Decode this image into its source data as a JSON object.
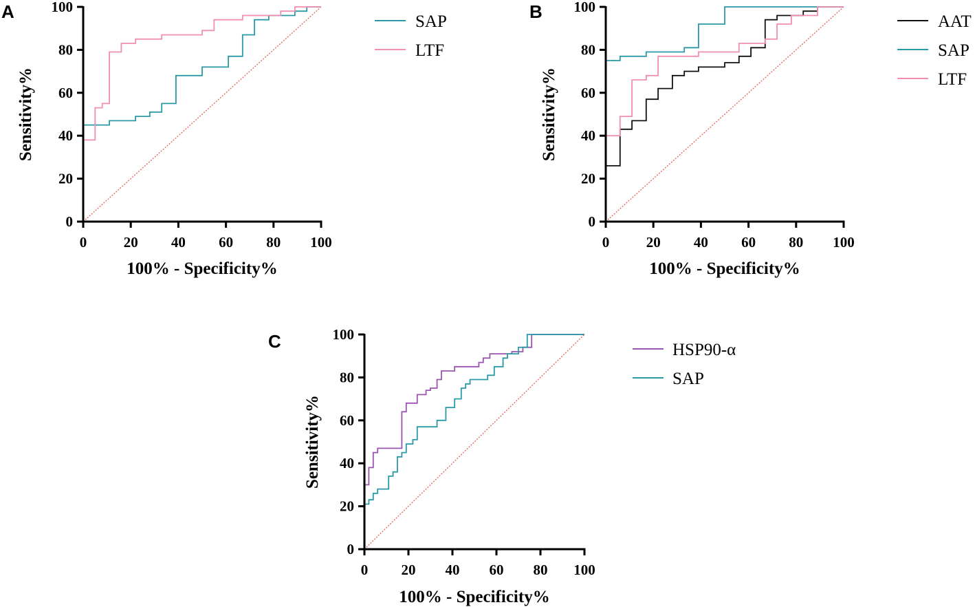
{
  "chart_data": [
    {
      "type": "line",
      "panel_label": "A",
      "xlabel": "100% - Specificity%",
      "ylabel": "Sensitivity%",
      "xlim": [
        0,
        100
      ],
      "ylim": [
        0,
        100
      ],
      "xticks": [
        "0",
        "20",
        "40",
        "60",
        "80",
        "100"
      ],
      "yticks": [
        "0",
        "20",
        "40",
        "60",
        "80",
        "100"
      ],
      "reference_line": true,
      "legend_position": "right",
      "series": [
        {
          "name": "SAP",
          "color": "#2a9aa6",
          "x": [
            0,
            0,
            11,
            11,
            22,
            22,
            28,
            28,
            33,
            33,
            39,
            39,
            50,
            50,
            61,
            61,
            67,
            67,
            72,
            72,
            78,
            78,
            89,
            89,
            94,
            94,
            100
          ],
          "y": [
            0,
            45,
            45,
            47,
            47,
            49,
            49,
            51,
            51,
            55,
            55,
            68,
            68,
            72,
            72,
            77,
            77,
            87,
            87,
            94,
            94,
            96,
            96,
            98,
            98,
            100,
            100
          ]
        },
        {
          "name": "LTF",
          "color": "#f08fb0",
          "x": [
            0,
            0,
            5,
            5,
            8,
            8,
            11,
            11,
            16,
            16,
            22,
            22,
            33,
            33,
            50,
            50,
            55,
            55,
            67,
            67,
            83,
            83,
            89,
            89,
            100
          ],
          "y": [
            0,
            38,
            38,
            53,
            53,
            55,
            55,
            79,
            79,
            83,
            83,
            85,
            85,
            87,
            87,
            89,
            89,
            94,
            94,
            96,
            96,
            98,
            98,
            100,
            100
          ]
        }
      ]
    },
    {
      "type": "line",
      "panel_label": "B",
      "xlabel": "100% - Specificity%",
      "ylabel": "Sensitivity%",
      "xlim": [
        0,
        100
      ],
      "ylim": [
        0,
        100
      ],
      "xticks": [
        "0",
        "20",
        "40",
        "60",
        "80",
        "100"
      ],
      "yticks": [
        "0",
        "20",
        "40",
        "60",
        "80",
        "100"
      ],
      "reference_line": true,
      "legend_position": "right",
      "series": [
        {
          "name": "AAT",
          "color": "#111111",
          "x": [
            0,
            0,
            6,
            6,
            11,
            11,
            17,
            17,
            22,
            22,
            28,
            28,
            33,
            33,
            39,
            39,
            50,
            50,
            56,
            56,
            61,
            61,
            67,
            67,
            72,
            72,
            78,
            78,
            83,
            83,
            89,
            89,
            100
          ],
          "y": [
            0,
            26,
            26,
            43,
            43,
            47,
            47,
            57,
            57,
            62,
            62,
            68,
            68,
            70,
            70,
            72,
            72,
            74,
            74,
            77,
            77,
            81,
            81,
            94,
            94,
            96,
            96,
            96,
            96,
            98,
            98,
            100,
            100
          ],
          "stroke_width": 1.6
        },
        {
          "name": "SAP",
          "color": "#2a9aa6",
          "x": [
            0,
            0,
            6,
            6,
            17,
            17,
            33,
            33,
            39,
            39,
            50,
            50,
            100
          ],
          "y": [
            0,
            75,
            75,
            77,
            77,
            79,
            79,
            81,
            81,
            92,
            92,
            100,
            100
          ]
        },
        {
          "name": "LTF",
          "color": "#f08fb0",
          "x": [
            0,
            0,
            6,
            6,
            11,
            11,
            17,
            17,
            22,
            22,
            39,
            39,
            56,
            56,
            67,
            67,
            72,
            72,
            78,
            78,
            89,
            89,
            100
          ],
          "y": [
            0,
            40,
            40,
            49,
            49,
            66,
            66,
            68,
            68,
            77,
            77,
            79,
            79,
            83,
            83,
            85,
            85,
            92,
            92,
            96,
            96,
            100,
            100
          ]
        }
      ]
    },
    {
      "type": "line",
      "panel_label": "C",
      "xlabel": "100% - Specificity%",
      "ylabel": "Sensitivity%",
      "xlim": [
        0,
        100
      ],
      "ylim": [
        0,
        100
      ],
      "xticks": [
        "0",
        "20",
        "40",
        "60",
        "80",
        "100"
      ],
      "yticks": [
        "0",
        "20",
        "40",
        "60",
        "80",
        "100"
      ],
      "reference_line": true,
      "legend_position": "right",
      "series": [
        {
          "name": "HSP90-α",
          "color": "#9a55b0",
          "x": [
            0,
            0,
            2,
            2,
            4,
            4,
            6,
            6,
            9,
            9,
            17,
            17,
            19,
            19,
            24,
            24,
            28,
            28,
            30,
            30,
            33,
            33,
            35,
            35,
            41,
            41,
            44,
            44,
            52,
            52,
            54,
            54,
            57,
            57,
            61,
            61,
            67,
            67,
            72,
            72,
            76,
            76,
            100
          ],
          "y": [
            0,
            30,
            30,
            38,
            38,
            45,
            45,
            47,
            47,
            47,
            47,
            64,
            64,
            68,
            68,
            72,
            72,
            74,
            74,
            75,
            75,
            79,
            79,
            83,
            83,
            85,
            85,
            85,
            85,
            87,
            87,
            89,
            89,
            91,
            91,
            91,
            91,
            92,
            92,
            94,
            94,
            100,
            100
          ]
        },
        {
          "name": "SAP",
          "color": "#2a9aa6",
          "x": [
            0,
            0,
            2,
            2,
            4,
            4,
            6,
            6,
            11,
            11,
            13,
            13,
            15,
            15,
            17,
            17,
            19,
            19,
            22,
            22,
            24,
            24,
            33,
            33,
            37,
            37,
            41,
            41,
            44,
            44,
            46,
            46,
            48,
            48,
            56,
            56,
            59,
            59,
            63,
            63,
            65,
            65,
            70,
            70,
            74,
            74,
            100
          ],
          "y": [
            0,
            21,
            21,
            23,
            23,
            26,
            26,
            28,
            28,
            34,
            34,
            36,
            36,
            43,
            43,
            45,
            45,
            49,
            49,
            51,
            51,
            57,
            57,
            60,
            60,
            66,
            66,
            70,
            70,
            75,
            75,
            77,
            77,
            79,
            79,
            81,
            81,
            85,
            85,
            89,
            89,
            91,
            91,
            94,
            94,
            100,
            100
          ]
        }
      ]
    }
  ]
}
